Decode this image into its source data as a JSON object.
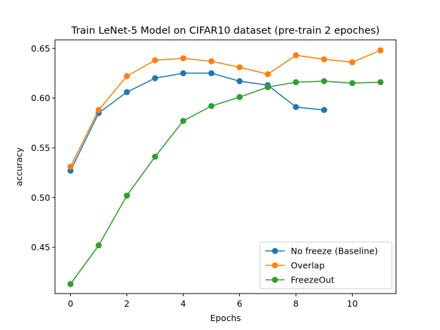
{
  "chart_data": {
    "type": "line",
    "title": "Train LeNet-5 Model on CIFAR10 dataset (pre-train 2 epoches)",
    "xlabel": "Epochs",
    "ylabel": "accuracy",
    "xlim": [
      -0.55,
      11.55
    ],
    "ylim": [
      0.4035,
      0.6585
    ],
    "xticks": [
      0,
      2,
      4,
      6,
      8,
      10
    ],
    "xtick_labels": [
      "0",
      "2",
      "4",
      "6",
      "8",
      "10"
    ],
    "yticks": [
      0.45,
      0.5,
      0.55,
      0.6,
      0.65
    ],
    "ytick_labels": [
      "0.45",
      "0.50",
      "0.55",
      "0.60",
      "0.65"
    ],
    "grid": false,
    "legend_position": "lower-right",
    "series": [
      {
        "name": "No freeze (Baseline)",
        "color": "#1f77b4",
        "marker": "circle",
        "x": [
          0,
          1,
          2,
          3,
          4,
          5,
          6,
          7,
          8,
          9
        ],
        "y": [
          0.527,
          0.585,
          0.606,
          0.62,
          0.625,
          0.625,
          0.617,
          0.613,
          0.591,
          0.588
        ]
      },
      {
        "name": "Overlap",
        "color": "#ff7f0e",
        "marker": "circle",
        "x": [
          0,
          1,
          2,
          3,
          4,
          5,
          6,
          7,
          8,
          9,
          10,
          11
        ],
        "y": [
          0.531,
          0.588,
          0.622,
          0.638,
          0.64,
          0.637,
          0.631,
          0.624,
          0.643,
          0.639,
          0.636,
          0.648
        ]
      },
      {
        "name": "FreezeOut",
        "color": "#2ca02c",
        "marker": "circle",
        "x": [
          0,
          1,
          2,
          3,
          4,
          5,
          6,
          7,
          8,
          9,
          10,
          11
        ],
        "y": [
          0.413,
          0.452,
          0.502,
          0.541,
          0.577,
          0.592,
          0.601,
          0.611,
          0.616,
          0.617,
          0.615,
          0.616
        ]
      }
    ]
  }
}
